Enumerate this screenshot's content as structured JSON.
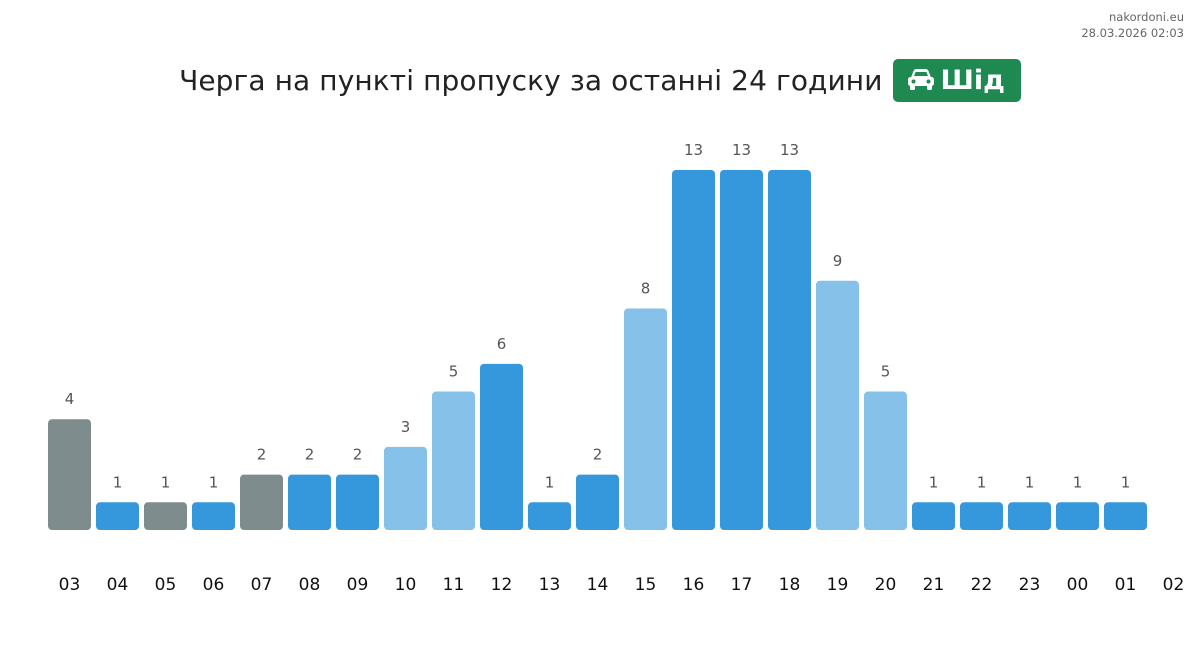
{
  "site": {
    "name": "nakordoni.eu",
    "timestamp": "28.03.2026 02:03"
  },
  "header": {
    "title": "Черга на пункті пропуску за останні 24 години",
    "direction_label": "Шід",
    "direction_icon": "car-icon"
  },
  "colors": {
    "badge": "#1e8a52",
    "history": "#7f8c8d",
    "dark": "#3598dc",
    "light": "#85c1e9"
  },
  "chart_data": {
    "type": "bar",
    "categories": [
      "03",
      "04",
      "05",
      "06",
      "07",
      "08",
      "09",
      "10",
      "11",
      "12",
      "13",
      "14",
      "15",
      "16",
      "17",
      "18",
      "19",
      "20",
      "21",
      "22",
      "23",
      "00",
      "01",
      "02"
    ],
    "values": [
      4,
      1,
      1,
      1,
      2,
      2,
      2,
      3,
      5,
      6,
      1,
      2,
      8,
      13,
      13,
      13,
      9,
      5,
      1,
      1,
      1,
      1,
      1,
      null
    ],
    "bar_colors": [
      "history",
      "dark",
      "history",
      "dark",
      "history",
      "dark",
      "dark",
      "light",
      "light",
      "dark",
      "dark",
      "dark",
      "light",
      "dark",
      "dark",
      "dark",
      "light",
      "light",
      "dark",
      "dark",
      "dark",
      "dark",
      "dark",
      "dark"
    ],
    "title": "Черга на пункті пропуску за останні 24 години",
    "xlabel": "",
    "ylabel": "",
    "ylim": [
      0,
      13
    ],
    "grid": false,
    "data_labels": true
  }
}
